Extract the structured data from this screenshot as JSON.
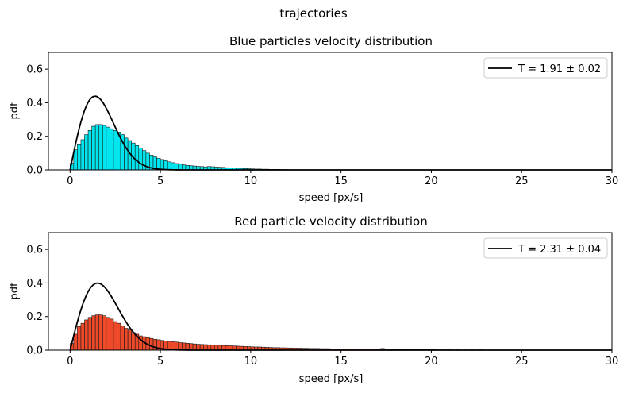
{
  "figure": {
    "suptitle": "trajectories"
  },
  "chart_data": [
    {
      "type": "bar",
      "title": "Blue particles velocity distribution",
      "xlabel": "speed [px/s]",
      "ylabel": "pdf",
      "xlim": [
        -1.2,
        30
      ],
      "ylim": [
        0,
        0.7
      ],
      "xticks": [
        "0",
        "5",
        "10",
        "15",
        "20",
        "25",
        "30"
      ],
      "yticks": [
        "0.0",
        "0.2",
        "0.4",
        "0.6"
      ],
      "grid": false,
      "legend_placement": "top-right",
      "legend": "T = 1.91 ± 0.02",
      "fit_T": 1.91,
      "bin_width": 0.2,
      "bar_color": "#00e5ee",
      "edge_color": "#1a1a1a",
      "fit_color": "#000000",
      "hist": [
        [
          0.0,
          0.04
        ],
        [
          0.2,
          0.12
        ],
        [
          0.4,
          0.15
        ],
        [
          0.6,
          0.18
        ],
        [
          0.8,
          0.21
        ],
        [
          1.0,
          0.235
        ],
        [
          1.2,
          0.26
        ],
        [
          1.4,
          0.27
        ],
        [
          1.6,
          0.27
        ],
        [
          1.8,
          0.265
        ],
        [
          2.0,
          0.255
        ],
        [
          2.2,
          0.245
        ],
        [
          2.4,
          0.235
        ],
        [
          2.6,
          0.225
        ],
        [
          2.8,
          0.21
        ],
        [
          3.0,
          0.19
        ],
        [
          3.2,
          0.175
        ],
        [
          3.4,
          0.16
        ],
        [
          3.6,
          0.145
        ],
        [
          3.8,
          0.13
        ],
        [
          4.0,
          0.115
        ],
        [
          4.2,
          0.1
        ],
        [
          4.4,
          0.088
        ],
        [
          4.6,
          0.078
        ],
        [
          4.8,
          0.07
        ],
        [
          5.0,
          0.062
        ],
        [
          5.2,
          0.055
        ],
        [
          5.4,
          0.048
        ],
        [
          5.6,
          0.043
        ],
        [
          5.8,
          0.038
        ],
        [
          6.0,
          0.034
        ],
        [
          6.2,
          0.03
        ],
        [
          6.4,
          0.027
        ],
        [
          6.6,
          0.025
        ],
        [
          6.8,
          0.023
        ],
        [
          7.0,
          0.021
        ],
        [
          7.2,
          0.02
        ],
        [
          7.4,
          0.018
        ],
        [
          7.6,
          0.02
        ],
        [
          7.8,
          0.019
        ],
        [
          8.0,
          0.017
        ],
        [
          8.2,
          0.016
        ],
        [
          8.4,
          0.015
        ],
        [
          8.6,
          0.013
        ],
        [
          8.8,
          0.012
        ],
        [
          9.0,
          0.011
        ],
        [
          9.2,
          0.01
        ],
        [
          9.4,
          0.009
        ],
        [
          9.6,
          0.008
        ],
        [
          9.8,
          0.007
        ],
        [
          10.0,
          0.006
        ],
        [
          10.2,
          0.005
        ],
        [
          10.4,
          0.005
        ],
        [
          10.6,
          0.004
        ],
        [
          10.8,
          0.004
        ],
        [
          11.0,
          0.003
        ],
        [
          11.2,
          0.003
        ],
        [
          11.4,
          0.003
        ],
        [
          11.6,
          0.002
        ],
        [
          11.8,
          0.002
        ]
      ]
    },
    {
      "type": "bar",
      "title": "Red particle velocity distribution",
      "xlabel": "speed [px/s]",
      "ylabel": "pdf",
      "xlim": [
        -1.2,
        30
      ],
      "ylim": [
        0,
        0.7
      ],
      "xticks": [
        "0",
        "5",
        "10",
        "15",
        "20",
        "25",
        "30"
      ],
      "yticks": [
        "0.0",
        "0.2",
        "0.4",
        "0.6"
      ],
      "grid": false,
      "legend_placement": "top-right",
      "legend": "T = 2.31 ± 0.04",
      "fit_T": 2.31,
      "bin_width": 0.2,
      "bar_color": "#ee4a2a",
      "edge_color": "#1a1a1a",
      "fit_color": "#000000",
      "hist": [
        [
          0.0,
          0.04
        ],
        [
          0.2,
          0.095
        ],
        [
          0.4,
          0.14
        ],
        [
          0.6,
          0.16
        ],
        [
          0.8,
          0.18
        ],
        [
          1.0,
          0.195
        ],
        [
          1.2,
          0.205
        ],
        [
          1.4,
          0.21
        ],
        [
          1.6,
          0.21
        ],
        [
          1.8,
          0.205
        ],
        [
          2.0,
          0.195
        ],
        [
          2.2,
          0.185
        ],
        [
          2.4,
          0.17
        ],
        [
          2.6,
          0.16
        ],
        [
          2.8,
          0.145
        ],
        [
          3.0,
          0.13
        ],
        [
          3.2,
          0.12
        ],
        [
          3.4,
          0.105
        ],
        [
          3.6,
          0.095
        ],
        [
          3.8,
          0.085
        ],
        [
          4.0,
          0.08
        ],
        [
          4.2,
          0.075
        ],
        [
          4.4,
          0.07
        ],
        [
          4.6,
          0.065
        ],
        [
          4.8,
          0.062
        ],
        [
          5.0,
          0.058
        ],
        [
          5.2,
          0.055
        ],
        [
          5.4,
          0.052
        ],
        [
          5.6,
          0.05
        ],
        [
          5.8,
          0.048
        ],
        [
          6.0,
          0.045
        ],
        [
          6.2,
          0.043
        ],
        [
          6.4,
          0.041
        ],
        [
          6.6,
          0.039
        ],
        [
          6.8,
          0.037
        ],
        [
          7.0,
          0.035
        ],
        [
          7.2,
          0.034
        ],
        [
          7.4,
          0.033
        ],
        [
          7.6,
          0.032
        ],
        [
          7.8,
          0.031
        ],
        [
          8.0,
          0.03
        ],
        [
          8.2,
          0.029
        ],
        [
          8.4,
          0.028
        ],
        [
          8.6,
          0.027
        ],
        [
          8.8,
          0.026
        ],
        [
          9.0,
          0.025
        ],
        [
          9.2,
          0.024
        ],
        [
          9.4,
          0.023
        ],
        [
          9.6,
          0.022
        ],
        [
          9.8,
          0.021
        ],
        [
          10.0,
          0.02
        ],
        [
          10.2,
          0.019
        ],
        [
          10.4,
          0.019
        ],
        [
          10.6,
          0.018
        ],
        [
          10.8,
          0.017
        ],
        [
          11.0,
          0.016
        ],
        [
          11.2,
          0.015
        ],
        [
          11.4,
          0.015
        ],
        [
          11.6,
          0.014
        ],
        [
          11.8,
          0.014
        ],
        [
          12.0,
          0.013
        ],
        [
          12.2,
          0.013
        ],
        [
          12.4,
          0.012
        ],
        [
          12.6,
          0.012
        ],
        [
          12.8,
          0.011
        ],
        [
          13.0,
          0.011
        ],
        [
          13.2,
          0.01
        ],
        [
          13.4,
          0.01
        ],
        [
          13.6,
          0.01
        ],
        [
          13.8,
          0.009
        ],
        [
          14.0,
          0.009
        ],
        [
          14.2,
          0.009
        ],
        [
          14.4,
          0.008
        ],
        [
          14.6,
          0.008
        ],
        [
          14.8,
          0.008
        ],
        [
          15.0,
          0.008
        ],
        [
          15.2,
          0.007
        ],
        [
          15.4,
          0.007
        ],
        [
          15.6,
          0.007
        ],
        [
          15.8,
          0.007
        ],
        [
          16.0,
          0.006
        ],
        [
          16.2,
          0.006
        ],
        [
          16.4,
          0.006
        ],
        [
          16.6,
          0.006
        ],
        [
          16.8,
          0.005
        ],
        [
          17.0,
          0.005
        ],
        [
          17.2,
          0.01
        ],
        [
          17.4,
          0.005
        ],
        [
          17.6,
          0.005
        ],
        [
          17.8,
          0.004
        ],
        [
          18.0,
          0.004
        ],
        [
          18.2,
          0.004
        ],
        [
          18.4,
          0.004
        ],
        [
          18.6,
          0.004
        ],
        [
          18.8,
          0.003
        ],
        [
          19.0,
          0.003
        ],
        [
          19.2,
          0.003
        ],
        [
          19.4,
          0.003
        ],
        [
          19.6,
          0.003
        ],
        [
          19.8,
          0.003
        ],
        [
          20.0,
          0.003
        ],
        [
          20.2,
          0.002
        ],
        [
          20.4,
          0.002
        ],
        [
          20.6,
          0.002
        ],
        [
          20.8,
          0.002
        ],
        [
          21.0,
          0.002
        ],
        [
          21.4,
          0.002
        ],
        [
          21.8,
          0.002
        ],
        [
          22.2,
          0.002
        ],
        [
          22.6,
          0.002
        ]
      ]
    }
  ]
}
